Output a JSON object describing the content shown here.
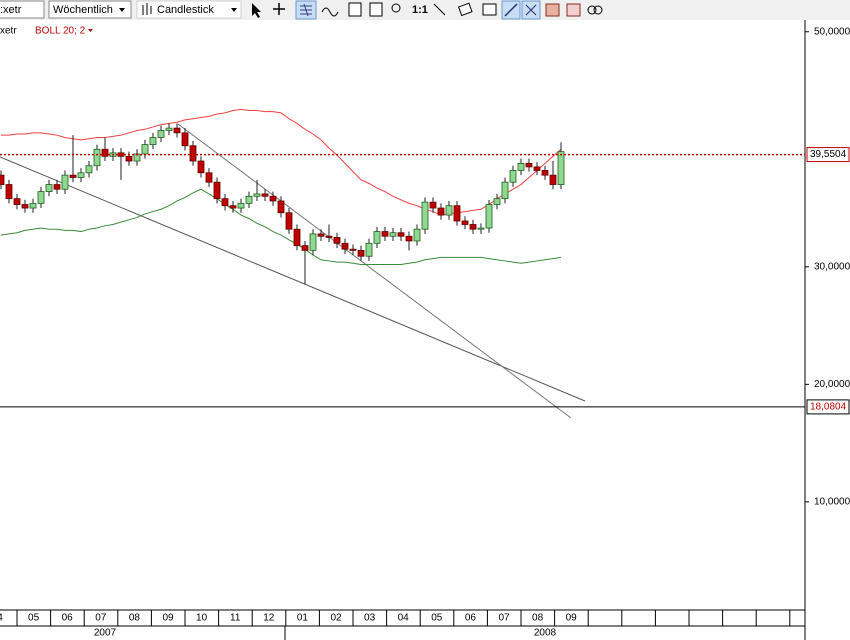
{
  "toolbar": {
    "symbol": ":xetr",
    "period": "Wöchentlich",
    "chart_style": "Candlestick",
    "zoom": "1:1"
  },
  "chart_data": {
    "type": "candlestick",
    "legend": {
      "symbol": "xetr",
      "indicator": "BOLL 20; 2"
    },
    "open": [
      37.8,
      37.0,
      35.8,
      35.3,
      35.0,
      35.4,
      36.4,
      37.0,
      36.6,
      37.8,
      37.6,
      38.0,
      38.6,
      40.0,
      39.4,
      39.7,
      39.4,
      39.0,
      39.6,
      40.4,
      41.0,
      41.6,
      41.8,
      41.4,
      40.3,
      39.0,
      38.0,
      37.2,
      35.8,
      35.2,
      35.0,
      35.4,
      36.0,
      36.2,
      36.0,
      35.6,
      34.6,
      33.2,
      31.8,
      31.4,
      32.8,
      32.6,
      32.5,
      32.0,
      31.5,
      31.4,
      30.9,
      32.0,
      33.0,
      32.6,
      32.9,
      32.6,
      32.2,
      33.2,
      35.5,
      35.0,
      34.4,
      35.2,
      33.9,
      33.6,
      33.2,
      33.3,
      35.3,
      35.8,
      37.2,
      38.2,
      38.8,
      38.5,
      38.2,
      37.8,
      37.0
    ],
    "high": [
      38.2,
      37.4,
      36.2,
      35.7,
      35.8,
      36.8,
      37.4,
      37.4,
      38.2,
      41.2,
      38.4,
      39.0,
      40.4,
      41.0,
      40.1,
      40.1,
      39.8,
      40.0,
      40.8,
      41.4,
      42.0,
      42.2,
      42.2,
      41.8,
      40.7,
      39.4,
      38.4,
      37.6,
      36.2,
      35.6,
      35.8,
      36.4,
      37.4,
      36.6,
      36.4,
      36.0,
      35.0,
      33.6,
      32.2,
      33.2,
      33.2,
      33.6,
      32.9,
      32.4,
      31.9,
      31.8,
      32.4,
      33.4,
      33.4,
      33.3,
      33.3,
      33.0,
      33.6,
      35.9,
      35.9,
      35.4,
      35.6,
      35.6,
      34.3,
      34.0,
      33.7,
      35.7,
      36.2,
      37.6,
      38.6,
      39.2,
      39.2,
      38.9,
      38.6,
      39.0,
      40.6
    ],
    "low": [
      36.6,
      35.4,
      34.9,
      34.6,
      34.6,
      35.0,
      36.0,
      36.2,
      36.2,
      37.2,
      37.2,
      37.6,
      38.2,
      39.0,
      39.0,
      37.4,
      38.6,
      38.6,
      39.2,
      40.0,
      40.6,
      41.2,
      41.0,
      39.9,
      38.6,
      37.6,
      36.8,
      35.4,
      34.8,
      34.6,
      34.6,
      35.0,
      35.6,
      35.6,
      35.2,
      34.2,
      32.8,
      31.4,
      28.5,
      31.0,
      32.2,
      32.1,
      31.6,
      31.1,
      31.0,
      30.5,
      30.5,
      31.6,
      32.2,
      32.2,
      32.2,
      31.4,
      31.8,
      32.8,
      34.6,
      34.0,
      34.0,
      33.5,
      33.2,
      32.8,
      32.8,
      32.9,
      34.9,
      35.4,
      36.8,
      37.8,
      38.1,
      37.8,
      37.4,
      36.6,
      36.6
    ],
    "close": [
      37.0,
      35.8,
      35.3,
      35.0,
      35.4,
      36.4,
      37.0,
      36.6,
      37.8,
      37.6,
      38.0,
      38.6,
      40.0,
      39.4,
      39.7,
      39.4,
      39.0,
      39.6,
      40.4,
      41.0,
      41.6,
      41.8,
      41.4,
      40.3,
      39.0,
      38.0,
      37.2,
      35.8,
      35.2,
      35.0,
      35.4,
      36.0,
      36.2,
      36.0,
      35.6,
      34.6,
      33.2,
      31.8,
      31.4,
      32.8,
      32.6,
      32.5,
      32.0,
      31.5,
      31.4,
      30.9,
      32.0,
      33.0,
      32.6,
      32.9,
      32.6,
      32.2,
      33.2,
      35.5,
      35.0,
      34.4,
      35.2,
      33.9,
      33.6,
      33.2,
      33.3,
      35.3,
      35.8,
      37.2,
      38.2,
      38.8,
      38.5,
      38.2,
      37.8,
      37.0,
      39.8
    ],
    "up_color": "#8fd88f",
    "down_color": "#c00000",
    "bands": [
      {
        "color": "#f04040",
        "values": [
          41.2,
          41.2,
          41.3,
          41.3,
          41.4,
          41.4,
          41.3,
          41.2,
          41.0,
          40.9,
          40.8,
          40.9,
          41.0,
          41.0,
          41.1,
          41.2,
          41.4,
          41.6,
          41.7,
          41.9,
          42.1,
          42.2,
          42.3,
          42.5,
          42.6,
          42.7,
          42.8,
          43.0,
          43.1,
          43.3,
          43.4,
          43.3,
          43.3,
          43.2,
          43.2,
          43.1,
          42.6,
          42.2,
          41.7,
          41.3,
          40.8,
          40.1,
          39.5,
          38.8,
          38.1,
          37.4,
          37.1,
          36.7,
          36.4,
          36.0,
          35.7,
          35.4,
          35.2,
          34.9,
          34.7,
          34.4,
          34.5,
          34.6,
          34.7,
          34.8,
          34.9,
          35.3,
          35.8,
          36.2,
          36.6,
          37.0,
          37.6,
          38.2,
          38.8,
          39.4,
          40.0
        ]
      },
      {
        "color": "#3a8a3a",
        "values": [
          32.7,
          32.8,
          32.9,
          33.1,
          33.2,
          33.3,
          33.2,
          33.2,
          33.1,
          33.1,
          33.0,
          33.2,
          33.3,
          33.5,
          33.6,
          33.8,
          34.0,
          34.2,
          34.5,
          34.7,
          34.9,
          35.2,
          35.6,
          35.9,
          36.3,
          36.6,
          36.2,
          35.8,
          35.3,
          34.9,
          34.4,
          34.1,
          33.7,
          33.4,
          33.0,
          32.7,
          32.3,
          31.9,
          31.5,
          31.0,
          30.6,
          30.5,
          30.4,
          30.4,
          30.3,
          30.2,
          30.2,
          30.2,
          30.2,
          30.2,
          30.2,
          30.3,
          30.4,
          30.6,
          30.7,
          30.8,
          30.8,
          30.8,
          30.8,
          30.8,
          30.8,
          30.7,
          30.6,
          30.5,
          30.4,
          30.3,
          30.4,
          30.5,
          30.6,
          30.7,
          30.8
        ]
      }
    ],
    "price_lines": [
      {
        "value": 39.5504,
        "label": "39,5504",
        "color": "#c00000"
      },
      {
        "value": 18.0804,
        "label": "18,0804",
        "color": "#000000"
      }
    ],
    "ylim": [
      0.8,
      51.0
    ],
    "yticks": [
      {
        "value": 10,
        "label": "10,0000"
      },
      {
        "value": 20,
        "label": "20,0000"
      },
      {
        "value": 30,
        "label": "30,0000"
      },
      {
        "value": 50,
        "label": "50,0000"
      }
    ],
    "months": [
      "4",
      "05",
      "06",
      "07",
      "08",
      "09",
      "10",
      "11",
      "12",
      "01",
      "02",
      "03",
      "04",
      "05",
      "06",
      "07",
      "08",
      "09"
    ],
    "years": [
      "2007",
      "2008"
    ]
  }
}
